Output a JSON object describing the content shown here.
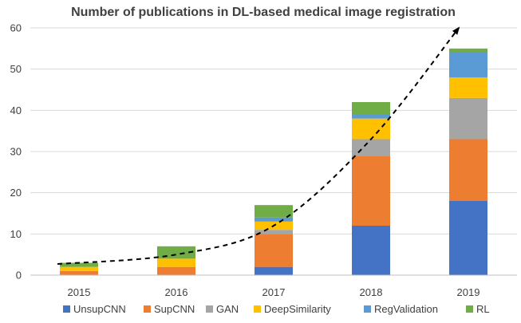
{
  "chart_data": {
    "type": "bar",
    "stacked": true,
    "title": "Number of publications in DL-based medical image registration",
    "xlabel": "",
    "ylabel": "",
    "categories": [
      "2015",
      "2016",
      "2017",
      "2018",
      "2019"
    ],
    "ylim": [
      0,
      60
    ],
    "yticks": [
      "0",
      "10",
      "20",
      "30",
      "40",
      "50",
      "60"
    ],
    "grid": true,
    "legend_position": "bottom",
    "series": [
      {
        "name": "UnsupCNN",
        "color": "#4472C4",
        "values": [
          0,
          0,
          2,
          12,
          18
        ]
      },
      {
        "name": "SupCNN",
        "color": "#ED7D31",
        "values": [
          1,
          2,
          8,
          17,
          15
        ]
      },
      {
        "name": "GAN",
        "color": "#A5A5A5",
        "values": [
          0,
          0,
          1,
          4,
          10
        ]
      },
      {
        "name": "DeepSimilarity",
        "color": "#FFC000",
        "values": [
          1,
          2,
          2,
          5,
          5
        ]
      },
      {
        "name": "RegValidation",
        "color": "#5B9BD5",
        "values": [
          0,
          0,
          1,
          1,
          6
        ]
      },
      {
        "name": "RL",
        "color": "#70AD47",
        "values": [
          1,
          3,
          3,
          3,
          1
        ]
      }
    ],
    "trend_line": {
      "style": "dashed",
      "color": "#000000",
      "values": [
        2.7,
        5.0,
        12.0,
        33.0,
        60.0
      ]
    }
  }
}
